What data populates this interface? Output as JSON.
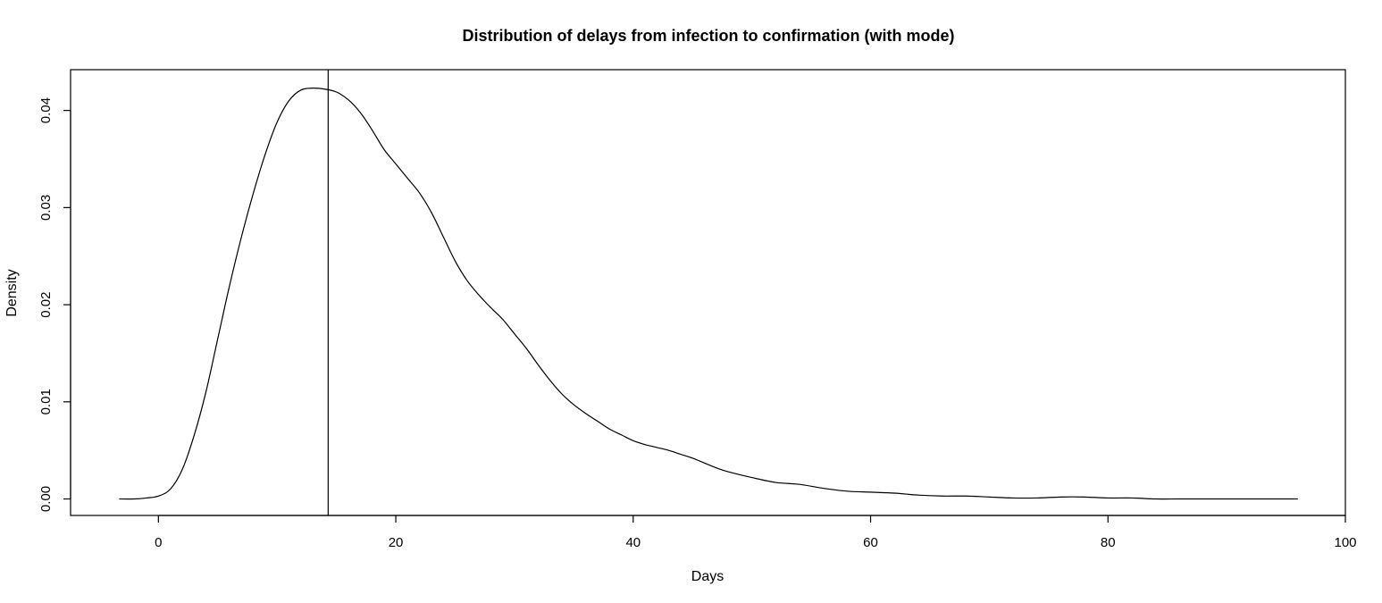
{
  "chart_data": {
    "type": "line",
    "title": "Distribution of delays from infection to confirmation (with mode)",
    "xlabel": "Days",
    "ylabel": "Density",
    "xlim": [
      -7.4,
      100
    ],
    "ylim": [
      -0.0017,
      0.0442
    ],
    "x_ticks": [
      0,
      20,
      40,
      60,
      80,
      100
    ],
    "x_tick_labels": [
      "0",
      "20",
      "40",
      "60",
      "80",
      "100"
    ],
    "y_ticks": [
      0.0,
      0.01,
      0.02,
      0.03,
      0.04
    ],
    "y_tick_labels": [
      "0.00",
      "0.01",
      "0.02",
      "0.03",
      "0.04"
    ],
    "grid": false,
    "series": [
      {
        "x": [
          -3.3,
          -2,
          -1,
          0,
          1,
          2,
          3,
          4,
          5,
          6,
          7,
          8,
          9,
          10,
          11,
          12,
          13,
          14,
          15,
          16,
          17,
          18,
          19,
          20,
          21,
          22,
          23,
          24,
          25,
          26,
          27,
          28,
          29,
          30,
          31,
          32,
          33,
          34,
          35,
          36,
          37,
          38,
          39,
          40,
          41,
          42,
          43,
          44,
          45,
          46,
          47,
          48,
          50,
          52,
          54,
          56,
          58,
          60,
          62,
          64,
          66,
          68,
          70,
          72,
          74,
          76,
          78,
          80,
          82,
          84,
          86,
          88,
          90,
          92,
          94,
          96
        ],
        "y": [
          0.0,
          0.0,
          0.0001,
          0.0003,
          0.001,
          0.003,
          0.0065,
          0.011,
          0.0165,
          0.022,
          0.027,
          0.0315,
          0.0355,
          0.0388,
          0.041,
          0.0421,
          0.0423,
          0.0422,
          0.0419,
          0.0411,
          0.0398,
          0.038,
          0.036,
          0.0345,
          0.033,
          0.0315,
          0.0295,
          0.027,
          0.0245,
          0.0225,
          0.021,
          0.0197,
          0.0185,
          0.017,
          0.0155,
          0.0138,
          0.0122,
          0.0108,
          0.0097,
          0.0088,
          0.008,
          0.0072,
          0.0066,
          0.006,
          0.0056,
          0.0053,
          0.005,
          0.0046,
          0.0042,
          0.0037,
          0.0032,
          0.0028,
          0.0022,
          0.0017,
          0.0015,
          0.0011,
          0.0008,
          0.0007,
          0.0006,
          0.0004,
          0.0003,
          0.0003,
          0.0002,
          0.0001,
          0.0001,
          0.0002,
          0.0002,
          0.0001,
          0.0001,
          0.0,
          0.0,
          0.0,
          0.0,
          0.0,
          0.0,
          0.0
        ]
      }
    ],
    "annotations": [
      {
        "type": "vline",
        "x": 14.3
      }
    ]
  }
}
